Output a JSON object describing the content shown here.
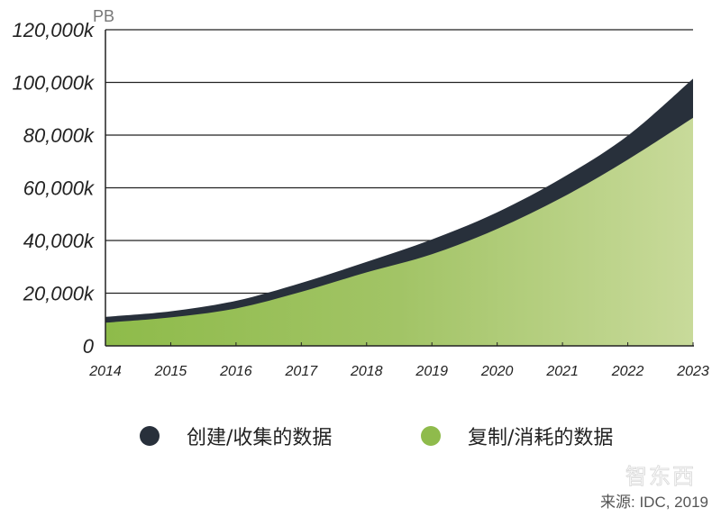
{
  "chart_data": {
    "type": "area",
    "stacked": false,
    "title": "",
    "ylabel": "PB",
    "xlabel": "",
    "x": [
      "2014",
      "2015",
      "2016",
      "2017",
      "2018",
      "2019",
      "2020",
      "2021",
      "2022",
      "2023"
    ],
    "ylim": [
      0,
      120000
    ],
    "yticks": [
      0,
      20000,
      40000,
      60000,
      80000,
      100000,
      120000
    ],
    "ytick_labels": [
      "0",
      "20,000k",
      "40,000k",
      "60,000k",
      "80,000k",
      "100,000k",
      "120,000k"
    ],
    "grid": "horizontal",
    "legend_position": "bottom",
    "series": [
      {
        "name": "创建/收集的数据",
        "color": "#28303b",
        "values": [
          11000,
          13100,
          17100,
          23900,
          31900,
          40400,
          50700,
          63800,
          79800,
          101400
        ]
      },
      {
        "name": "复制/消耗的数据",
        "color": "#8fbb4c",
        "values": [
          8800,
          10800,
          14200,
          20500,
          27900,
          34800,
          44400,
          56400,
          70700,
          86600
        ]
      }
    ]
  },
  "source": "来源: IDC, 2019",
  "watermark": "智东西"
}
